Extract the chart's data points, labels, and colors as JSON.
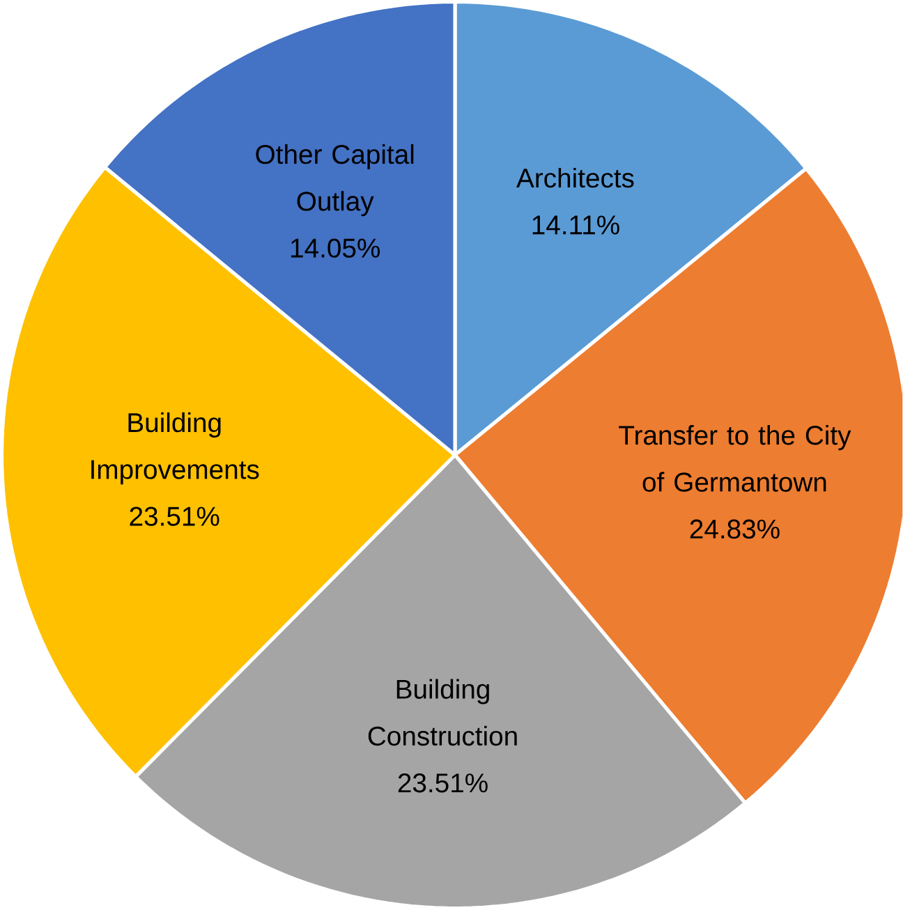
{
  "chart_data": {
    "type": "pie",
    "categories": [
      "Architects",
      "Transfer to the City of Germantown",
      "Building Construction",
      "Building Improvements",
      "Other Capital Outlay"
    ],
    "values": [
      14.11,
      24.83,
      23.51,
      23.51,
      14.05
    ],
    "value_labels": [
      "14.11%",
      "24.83%",
      "23.51%",
      "23.51%",
      "14.05%"
    ],
    "colors": [
      "#5b9bd5",
      "#ed7d31",
      "#a5a5a5",
      "#ffc000",
      "#4472c4"
    ]
  }
}
